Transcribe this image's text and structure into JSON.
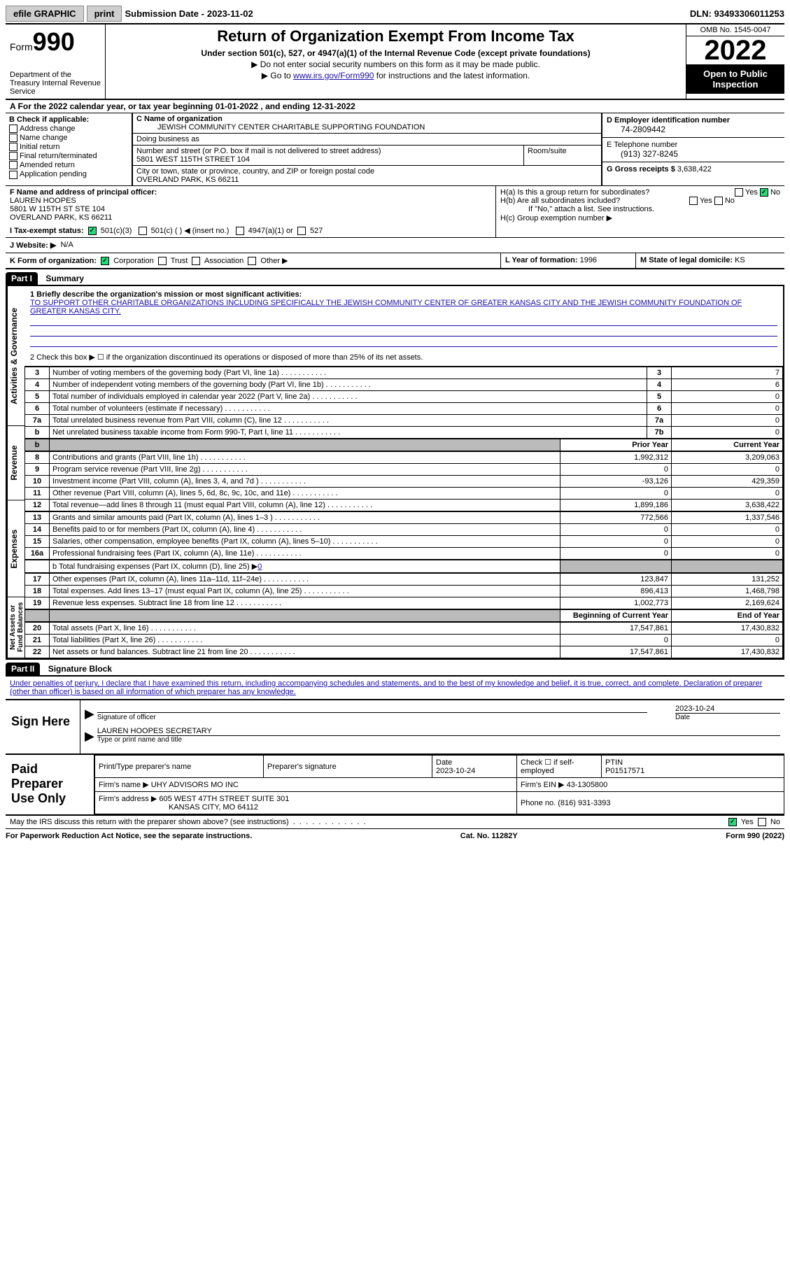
{
  "topbar": {
    "efile": "efile GRAPHIC",
    "print": "print",
    "sub_label": "Submission Date -",
    "sub_date": "2023-11-02",
    "dln": "DLN: 93493306011253"
  },
  "header": {
    "form": "Form",
    "form_no": "990",
    "dept": "Department of the Treasury Internal Revenue Service",
    "title": "Return of Organization Exempt From Income Tax",
    "sub1": "Under section 501(c), 527, or 4947(a)(1) of the Internal Revenue Code (except private foundations)",
    "sub2": "▶ Do not enter social security numbers on this form as it may be made public.",
    "sub3_pre": "▶ Go to ",
    "sub3_link": "www.irs.gov/Form990",
    "sub3_post": " for instructions and the latest information.",
    "omb": "OMB No. 1545-0047",
    "year": "2022",
    "open": "Open to Public Inspection"
  },
  "line_a": {
    "text_pre": "A   For the 2022 calendar year, or tax year beginning ",
    "begin": "01-01-2022",
    "mid": "   , and ending ",
    "end": "12-31-2022"
  },
  "b_checks": {
    "hdr": "B Check if applicable:",
    "items": [
      "Address change",
      "Name change",
      "Initial return",
      "Final return/terminated",
      "Amended return",
      "Application pending"
    ]
  },
  "c": {
    "name_lbl": "C Name of organization",
    "name": "JEWISH COMMUNITY CENTER CHARITABLE SUPPORTING FOUNDATION",
    "dba": "Doing business as",
    "street_lbl": "Number and street (or P.O. box if mail is not delivered to street address)",
    "street": "5801 WEST 115TH STREET 104",
    "room_lbl": "Room/suite",
    "city_lbl": "City or town, state or province, country, and ZIP or foreign postal code",
    "city": "OVERLAND PARK, KS  66211"
  },
  "d": {
    "lbl": "D Employer identification number",
    "val": "74-2809442"
  },
  "e": {
    "lbl": "E Telephone number",
    "val": "(913) 327-8245"
  },
  "g": {
    "lbl": "G Gross receipts $",
    "val": "3,638,422"
  },
  "f": {
    "lbl": "F  Name and address of principal officer:",
    "name": "LAUREN HOOPES",
    "addr1": "5801 W 115TH ST STE 104",
    "addr2": "OVERLAND PARK, KS  66211"
  },
  "h": {
    "a": "H(a)  Is this a group return for subordinates?",
    "b": "H(b)  Are all subordinates included?",
    "note": "If \"No,\" attach a list. See instructions.",
    "c": "H(c)  Group exemption number ▶"
  },
  "i": {
    "lbl": "I    Tax-exempt status:",
    "o1": "501(c)(3)",
    "o2": "501(c) (  ) ◀ (insert no.)",
    "o3": "4947(a)(1) or",
    "o4": "527"
  },
  "j": {
    "lbl": "J    Website: ▶",
    "val": "N/A"
  },
  "k": {
    "lbl": "K Form of organization:",
    "o": [
      "Corporation",
      "Trust",
      "Association",
      "Other ▶"
    ]
  },
  "l": {
    "lbl": "L Year of formation:",
    "val": "1996"
  },
  "m": {
    "lbl": "M State of legal domicile:",
    "val": "KS"
  },
  "part1": {
    "hdr": "Part I",
    "title": "Summary"
  },
  "sidelabels": [
    "Activities & Governance",
    "Revenue",
    "Expenses",
    "Net Assets or Fund Balances"
  ],
  "summary": {
    "s1_lbl": "1   Briefly describe the organization's mission or most significant activities:",
    "s1_val": "TO SUPPORT OTHER CHARITABLE ORGANIZATIONS INCLUDING SPECIFICALLY THE JEWISH COMMUNITY CENTER OF GREATER KANSAS CITY AND THE JEWISH COMMUNITY FOUNDATION OF GREATER KANSAS CITY.",
    "s2": "2    Check this box ▶ ☐  if the organization discontinued its operations or disposed of more than 25% of its net assets.",
    "rows_ag": [
      {
        "n": "3",
        "t": "Number of voting members of the governing body (Part VI, line 1a)",
        "l": "3",
        "v": "7"
      },
      {
        "n": "4",
        "t": "Number of independent voting members of the governing body (Part VI, line 1b)",
        "l": "4",
        "v": "6"
      },
      {
        "n": "5",
        "t": "Total number of individuals employed in calendar year 2022 (Part V, line 2a)",
        "l": "5",
        "v": "0"
      },
      {
        "n": "6",
        "t": "Total number of volunteers (estimate if necessary)",
        "l": "6",
        "v": "0"
      },
      {
        "n": "7a",
        "t": "Total unrelated business revenue from Part VIII, column (C), line 12",
        "l": "7a",
        "v": "0"
      },
      {
        "n": "b",
        "t": "Net unrelated business taxable income from Form 990-T, Part I, line 11",
        "l": "7b",
        "v": "0"
      }
    ],
    "col_hdr": {
      "py": "Prior Year",
      "cy": "Current Year"
    },
    "rows_rev": [
      {
        "n": "8",
        "t": "Contributions and grants (Part VIII, line 1h)",
        "py": "1,992,312",
        "cy": "3,209,063"
      },
      {
        "n": "9",
        "t": "Program service revenue (Part VIII, line 2g)",
        "py": "0",
        "cy": "0"
      },
      {
        "n": "10",
        "t": "Investment income (Part VIII, column (A), lines 3, 4, and 7d )",
        "py": "-93,126",
        "cy": "429,359"
      },
      {
        "n": "11",
        "t": "Other revenue (Part VIII, column (A), lines 5, 6d, 8c, 9c, 10c, and 11e)",
        "py": "0",
        "cy": "0"
      },
      {
        "n": "12",
        "t": "Total revenue—add lines 8 through 11 (must equal Part VIII, column (A), line 12)",
        "py": "1,899,186",
        "cy": "3,638,422"
      }
    ],
    "rows_exp": [
      {
        "n": "13",
        "t": "Grants and similar amounts paid (Part IX, column (A), lines 1–3 )",
        "py": "772,566",
        "cy": "1,337,546"
      },
      {
        "n": "14",
        "t": "Benefits paid to or for members (Part IX, column (A), line 4)",
        "py": "0",
        "cy": "0"
      },
      {
        "n": "15",
        "t": "Salaries, other compensation, employee benefits (Part IX, column (A), lines 5–10)",
        "py": "0",
        "cy": "0"
      },
      {
        "n": "16a",
        "t": "Professional fundraising fees (Part IX, column (A), line 11e)",
        "py": "0",
        "cy": "0"
      }
    ],
    "row_16b_pre": "b   Total fundraising expenses (Part IX, column (D), line 25) ▶",
    "row_16b_val": "0",
    "rows_exp2": [
      {
        "n": "17",
        "t": "Other expenses (Part IX, column (A), lines 11a–11d, 11f–24e)",
        "py": "123,847",
        "cy": "131,252"
      },
      {
        "n": "18",
        "t": "Total expenses. Add lines 13–17 (must equal Part IX, column (A), line 25)",
        "py": "896,413",
        "cy": "1,468,798"
      },
      {
        "n": "19",
        "t": "Revenue less expenses. Subtract line 18 from line 12",
        "py": "1,002,773",
        "cy": "2,169,624"
      }
    ],
    "col_hdr2": {
      "py": "Beginning of Current Year",
      "cy": "End of Year"
    },
    "rows_na": [
      {
        "n": "20",
        "t": "Total assets (Part X, line 16)",
        "py": "17,547,861",
        "cy": "17,430,832"
      },
      {
        "n": "21",
        "t": "Total liabilities (Part X, line 26)",
        "py": "0",
        "cy": "0"
      },
      {
        "n": "22",
        "t": "Net assets or fund balances. Subtract line 21 from line 20",
        "py": "17,547,861",
        "cy": "17,430,832"
      }
    ]
  },
  "part2": {
    "hdr": "Part II",
    "title": "Signature Block",
    "decl": "Under penalties of perjury, I declare that I have examined this return, including accompanying schedules and statements, and to the best of my knowledge and belief, it is true, correct, and complete. Declaration of preparer (other than officer) is based on all information of which preparer has any knowledge."
  },
  "sign": {
    "left": "Sign Here",
    "sig_of": "Signature of officer",
    "date": "2023-10-24",
    "date_lbl": "Date",
    "name": "LAUREN HOOPES  SECRETARY",
    "type_lbl": "Type or print name and title"
  },
  "prep": {
    "left": "Paid Preparer Use Only",
    "h1": "Print/Type preparer's name",
    "h2": "Preparer's signature",
    "h3": "Date",
    "h3v": "2023-10-24",
    "h4": "Check ☐ if self-employed",
    "h5": "PTIN",
    "h5v": "P01517571",
    "firm_lbl": "Firm's name   ▶",
    "firm": "UHY ADVISORS MO INC",
    "ein_lbl": "Firm's EIN ▶",
    "ein": "43-1305800",
    "addr_lbl": "Firm's address ▶",
    "addr1": "605 WEST 47TH STREET SUITE 301",
    "addr2": "KANSAS CITY, MO  64112",
    "ph_lbl": "Phone no.",
    "ph": "(816) 931-3393"
  },
  "footer": {
    "q": "May the IRS discuss this return with the preparer shown above? (see instructions)",
    "yes": "Yes",
    "no": "No",
    "pra": "For Paperwork Reduction Act Notice, see the separate instructions.",
    "cat": "Cat. No. 11282Y",
    "form": "Form 990 (2022)"
  }
}
